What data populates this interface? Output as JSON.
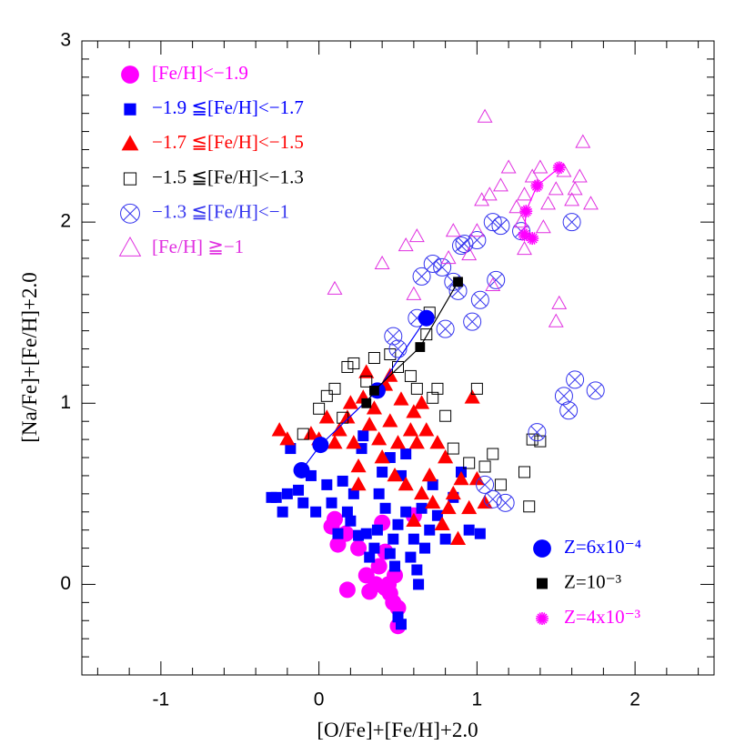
{
  "chart_data": {
    "type": "scatter",
    "x_label": "[O/Fe]+[Fe/H]+2.0",
    "y_label": "[Na/Fe]+[Fe/H]+2.0",
    "xlim": [
      -1.5,
      2.5
    ],
    "ylim": [
      -0.5,
      3
    ],
    "xticks": [
      -1,
      0,
      1,
      2
    ],
    "yticks": [
      0,
      1,
      2,
      3
    ],
    "xticks_minor": [
      -1.4,
      -1.2,
      -0.8,
      -0.6,
      -0.4,
      -0.2,
      0.2,
      0.4,
      0.6,
      0.8,
      1.2,
      1.4,
      1.6,
      1.8,
      2.2,
      2.4
    ],
    "yticks_minor": [
      -0.4,
      -0.3,
      -0.2,
      -0.1,
      0.1,
      0.2,
      0.3,
      0.4,
      0.5,
      0.6,
      0.7,
      0.8,
      0.9,
      1.1,
      1.2,
      1.3,
      1.4,
      1.5,
      1.6,
      1.7,
      1.8,
      1.9,
      2.1,
      2.2,
      2.3,
      2.4,
      2.5,
      2.6,
      2.7,
      2.8,
      2.9
    ],
    "legend": "top-left",
    "series": [
      {
        "name": "[Fe/H]<−1.9",
        "color": "#ff00ff",
        "marker": "circle",
        "x": [
          0.08,
          0.1,
          0.12,
          0.17,
          0.18,
          0.25,
          0.3,
          0.32,
          0.38,
          0.4,
          0.42,
          0.44,
          0.45,
          0.48,
          0.47,
          0.5,
          0.5,
          0.42,
          0.6,
          0.36
        ],
        "values": [
          0.32,
          0.36,
          0.22,
          0.28,
          -0.03,
          0.2,
          0.05,
          -0.04,
          0.1,
          0.34,
          0.18,
          0.0,
          -0.05,
          0.05,
          -0.1,
          -0.13,
          -0.23,
          -0.02,
          0.38,
          0.0
        ]
      },
      {
        "name": "−1.9 ≦[Fe/H]<−1.7",
        "color": "#0000ff",
        "marker": "square",
        "x": [
          -0.3,
          -0.27,
          -0.23,
          -0.2,
          -0.18,
          -0.13,
          -0.1,
          -0.05,
          -0.02,
          0.05,
          0.08,
          0.12,
          0.15,
          0.18,
          0.2,
          0.22,
          0.25,
          0.27,
          0.3,
          0.32,
          0.35,
          0.37,
          0.4,
          0.42,
          0.45,
          0.47,
          0.48,
          0.5,
          0.52,
          0.55,
          0.58,
          0.6,
          0.62,
          0.63,
          0.65,
          0.67,
          0.7,
          0.72,
          0.75,
          0.8,
          0.85,
          0.9,
          0.95,
          1.02,
          0.5,
          0.52,
          0.28,
          0.38,
          0.55,
          0.45
        ],
        "values": [
          0.48,
          0.48,
          0.4,
          0.5,
          0.75,
          0.52,
          0.45,
          0.6,
          0.4,
          0.55,
          0.45,
          0.28,
          0.57,
          0.4,
          0.35,
          0.5,
          0.27,
          0.75,
          0.28,
          0.15,
          0.2,
          0.3,
          0.62,
          0.42,
          0.7,
          0.25,
          0.1,
          0.33,
          0.6,
          0.4,
          0.15,
          0.25,
          0.08,
          0.0,
          0.42,
          0.2,
          0.3,
          0.55,
          0.38,
          0.25,
          0.48,
          0.62,
          0.3,
          0.28,
          -0.18,
          -0.22,
          0.82,
          0.5,
          0.72,
          0.17
        ]
      },
      {
        "name": "−1.7 ≦[Fe/H]<−1.5",
        "color": "#ff0000",
        "marker": "triangle",
        "x": [
          -0.25,
          -0.2,
          -0.05,
          0.0,
          0.05,
          0.1,
          0.13,
          0.18,
          0.2,
          0.22,
          0.25,
          0.28,
          0.3,
          0.32,
          0.35,
          0.38,
          0.4,
          0.42,
          0.45,
          0.48,
          0.5,
          0.52,
          0.55,
          0.58,
          0.6,
          0.62,
          0.65,
          0.68,
          0.7,
          0.72,
          0.75,
          0.78,
          0.8,
          0.85,
          0.88,
          0.9,
          0.95,
          0.97,
          1.0,
          1.05,
          0.6,
          0.82,
          0.45,
          0.25,
          0.65
        ],
        "values": [
          0.85,
          0.8,
          0.83,
          0.8,
          0.92,
          0.78,
          0.85,
          0.92,
          1.0,
          0.78,
          0.65,
          1.03,
          1.17,
          0.88,
          0.97,
          0.8,
          0.7,
          1.1,
          0.9,
          0.6,
          0.78,
          1.02,
          0.55,
          0.85,
          0.95,
          0.78,
          0.5,
          0.85,
          0.6,
          0.45,
          0.78,
          0.33,
          0.7,
          0.5,
          0.25,
          0.58,
          0.42,
          1.03,
          0.58,
          0.45,
          0.35,
          0.42,
          1.15,
          0.55,
          1.0
        ]
      },
      {
        "name": "−1.5 ≦[Fe/H]<−1.3",
        "color": "#000000",
        "marker": "open-square",
        "x": [
          -0.1,
          0.0,
          0.05,
          0.1,
          0.18,
          0.22,
          0.3,
          0.35,
          0.45,
          0.5,
          0.58,
          0.62,
          0.68,
          0.72,
          0.75,
          0.8,
          0.85,
          0.95,
          1.0,
          1.05,
          1.1,
          1.15,
          1.3,
          1.33,
          1.35,
          1.4,
          0.7,
          0.15
        ],
        "values": [
          0.83,
          0.97,
          1.04,
          1.08,
          1.2,
          1.22,
          1.12,
          1.25,
          1.27,
          1.2,
          1.15,
          1.08,
          1.38,
          1.03,
          1.08,
          0.93,
          0.75,
          0.67,
          1.08,
          0.65,
          0.72,
          0.55,
          0.62,
          0.43,
          0.8,
          0.79,
          1.5,
          0.92
        ]
      },
      {
        "name": "−1.3 ≦[Fe/H]<−1",
        "color": "#3333ee",
        "marker": "circle-x",
        "x": [
          0.47,
          0.62,
          0.65,
          0.72,
          0.78,
          0.8,
          0.85,
          0.88,
          0.9,
          0.92,
          1.0,
          1.02,
          1.1,
          1.12,
          1.15,
          1.28,
          1.6,
          1.1,
          1.18,
          1.05,
          1.38,
          1.55,
          1.58,
          1.62,
          1.75,
          0.5,
          0.97
        ],
        "values": [
          1.37,
          1.47,
          1.7,
          1.77,
          1.75,
          1.41,
          1.67,
          1.62,
          1.87,
          1.88,
          1.9,
          1.57,
          2.0,
          1.68,
          1.98,
          1.95,
          2.0,
          0.47,
          0.45,
          0.55,
          0.84,
          1.04,
          0.96,
          1.13,
          1.07,
          1.3,
          1.45
        ]
      },
      {
        "name": "[Fe/H] ≧−1",
        "color": "#e030e0",
        "marker": "open-triangle",
        "x": [
          0.1,
          0.4,
          0.55,
          0.62,
          0.85,
          0.82,
          0.95,
          1.0,
          1.03,
          1.05,
          1.08,
          1.1,
          1.15,
          1.2,
          1.25,
          1.28,
          1.3,
          1.35,
          1.4,
          1.45,
          1.5,
          1.55,
          1.6,
          1.65,
          1.67,
          1.72,
          1.5,
          1.52,
          1.3,
          1.42,
          1.62,
          0.6
        ],
        "values": [
          1.63,
          1.77,
          1.87,
          1.92,
          1.95,
          1.8,
          1.82,
          1.95,
          2.12,
          2.58,
          2.15,
          1.65,
          2.2,
          2.3,
          2.08,
          2.0,
          2.15,
          2.25,
          2.3,
          2.1,
          2.18,
          2.28,
          2.12,
          2.25,
          2.44,
          2.1,
          1.45,
          1.55,
          1.85,
          1.97,
          2.18,
          1.6
        ]
      }
    ],
    "models": [
      {
        "name": "Z=6x10⁻⁴",
        "color": "#0000ff",
        "marker": "circle",
        "x": [
          -0.11,
          0.01,
          0.37,
          0.68
        ],
        "values": [
          0.63,
          0.77,
          1.07,
          1.47
        ]
      },
      {
        "name": "Z=10⁻³",
        "color": "#000000",
        "marker": "square",
        "x": [
          0.3,
          0.35,
          0.64,
          0.88
        ],
        "values": [
          1.0,
          1.07,
          1.31,
          1.67
        ]
      },
      {
        "name": "Z=4x10⁻³",
        "color": "#ff00ff",
        "marker": "star",
        "x": [
          1.52,
          1.38,
          1.31,
          1.3,
          1.35
        ],
        "values": [
          2.3,
          2.2,
          2.06,
          1.93,
          1.91
        ]
      }
    ]
  }
}
